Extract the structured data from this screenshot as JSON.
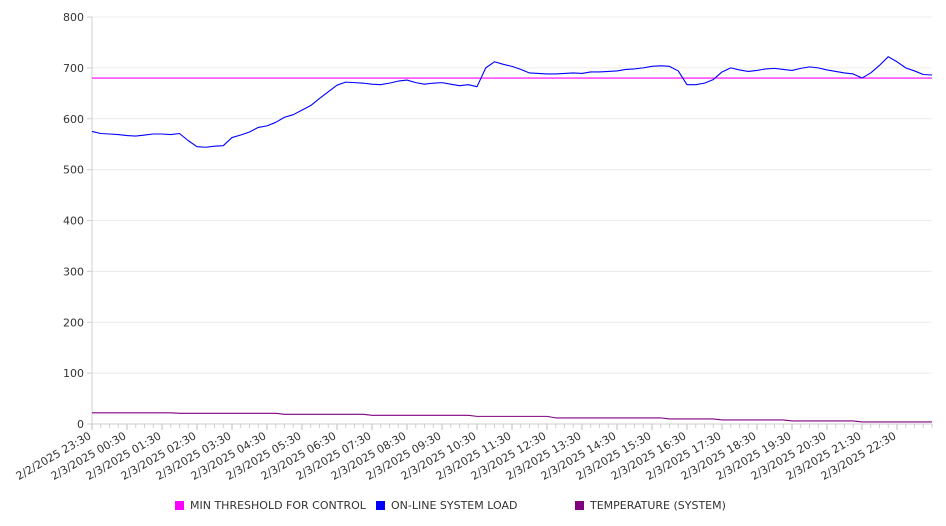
{
  "chart_data": {
    "type": "line",
    "title": "",
    "xlabel": "",
    "ylabel": "",
    "ylim": [
      0,
      800
    ],
    "y_ticks": [
      0,
      100,
      200,
      300,
      400,
      500,
      600,
      700,
      800
    ],
    "x_tick_labels": [
      "2/2/2025 23:30",
      "2/3/2025 00:30",
      "2/3/2025 01:30",
      "2/3/2025 02:30",
      "2/3/2025 03:30",
      "2/3/2025 04:30",
      "2/3/2025 05:30",
      "2/3/2025 06:30",
      "2/3/2025 07:30",
      "2/3/2025 08:30",
      "2/3/2025 09:30",
      "2/3/2025 10:30",
      "2/3/2025 11:30",
      "2/3/2025 12:30",
      "2/3/2025 13:30",
      "2/3/2025 14:30",
      "2/3/2025 15:30",
      "2/3/2025 16:30",
      "2/3/2025 17:30",
      "2/3/2025 18:30",
      "2/3/2025 19:30",
      "2/3/2025 20:30",
      "2/3/2025 21:30",
      "2/3/2025 22:30"
    ],
    "grid": true,
    "legend_position": "bottom",
    "series": [
      {
        "name": "MIN THRESHOLD FOR CONTROL",
        "color": "#ff00ff",
        "x": [
          "2/2/2025 23:30",
          "2/3/2025 23:30"
        ],
        "values": [
          680,
          680
        ]
      },
      {
        "name": "ON-LINE SYSTEM LOAD",
        "color": "#0000ff",
        "x": [
          "2/2/2025 23:30",
          "2/2/2025 23:45",
          "2/3/2025 00:00",
          "2/3/2025 00:15",
          "2/3/2025 00:30",
          "2/3/2025 00:45",
          "2/3/2025 01:00",
          "2/3/2025 01:15",
          "2/3/2025 01:30",
          "2/3/2025 01:45",
          "2/3/2025 02:00",
          "2/3/2025 02:15",
          "2/3/2025 02:30",
          "2/3/2025 02:45",
          "2/3/2025 03:00",
          "2/3/2025 03:15",
          "2/3/2025 03:30",
          "2/3/2025 03:45",
          "2/3/2025 04:00",
          "2/3/2025 04:15",
          "2/3/2025 04:30",
          "2/3/2025 04:45",
          "2/3/2025 05:00",
          "2/3/2025 05:15",
          "2/3/2025 05:30",
          "2/3/2025 05:45",
          "2/3/2025 06:00",
          "2/3/2025 06:15",
          "2/3/2025 06:30",
          "2/3/2025 06:45",
          "2/3/2025 07:00",
          "2/3/2025 07:15",
          "2/3/2025 07:30",
          "2/3/2025 07:45",
          "2/3/2025 08:00",
          "2/3/2025 08:15",
          "2/3/2025 08:30",
          "2/3/2025 08:45",
          "2/3/2025 09:00",
          "2/3/2025 09:15",
          "2/3/2025 09:30",
          "2/3/2025 09:45",
          "2/3/2025 10:00",
          "2/3/2025 10:15",
          "2/3/2025 10:30",
          "2/3/2025 10:45",
          "2/3/2025 11:00",
          "2/3/2025 11:15",
          "2/3/2025 11:30",
          "2/3/2025 11:45",
          "2/3/2025 12:00",
          "2/3/2025 12:15",
          "2/3/2025 12:30",
          "2/3/2025 12:45",
          "2/3/2025 13:00",
          "2/3/2025 13:15",
          "2/3/2025 13:30",
          "2/3/2025 13:45",
          "2/3/2025 14:00",
          "2/3/2025 14:15",
          "2/3/2025 14:30",
          "2/3/2025 14:45",
          "2/3/2025 15:00",
          "2/3/2025 15:15",
          "2/3/2025 15:30",
          "2/3/2025 15:45",
          "2/3/2025 16:00",
          "2/3/2025 16:15",
          "2/3/2025 16:30",
          "2/3/2025 16:45",
          "2/3/2025 17:00",
          "2/3/2025 17:15",
          "2/3/2025 17:30",
          "2/3/2025 17:45",
          "2/3/2025 18:00",
          "2/3/2025 18:15",
          "2/3/2025 18:30",
          "2/3/2025 18:45",
          "2/3/2025 19:00",
          "2/3/2025 19:15",
          "2/3/2025 19:30",
          "2/3/2025 19:45",
          "2/3/2025 20:00",
          "2/3/2025 20:15",
          "2/3/2025 20:30",
          "2/3/2025 20:45",
          "2/3/2025 21:00",
          "2/3/2025 21:15",
          "2/3/2025 21:30",
          "2/3/2025 21:45",
          "2/3/2025 22:00",
          "2/3/2025 22:15",
          "2/3/2025 22:30",
          "2/3/2025 22:45",
          "2/3/2025 23:00",
          "2/3/2025 23:15",
          "2/3/2025 23:30"
        ],
        "values": [
          575,
          571,
          570,
          569,
          567,
          566,
          568,
          570,
          570,
          569,
          571,
          557,
          545,
          544,
          546,
          547,
          563,
          568,
          574,
          583,
          586,
          593,
          603,
          608,
          617,
          626,
          640,
          653,
          666,
          672,
          671,
          670,
          668,
          667,
          670,
          674,
          676,
          671,
          668,
          670,
          671,
          668,
          665,
          667,
          663,
          700,
          712,
          707,
          703,
          697,
          690,
          689,
          688,
          688,
          689,
          690,
          689,
          692,
          692,
          693,
          694,
          697,
          698,
          700,
          703,
          704,
          703,
          694,
          667,
          667,
          670,
          677,
          692,
          700,
          696,
          693,
          695,
          698,
          699,
          697,
          695,
          699,
          702,
          700,
          696,
          693,
          690,
          688,
          680,
          690,
          705,
          722,
          712,
          700,
          694,
          687,
          686
        ]
      },
      {
        "name": "TEMPERATURE (SYSTEM)",
        "color": "#800080",
        "x": [
          "2/2/2025 23:30",
          "2/3/2025 01:45",
          "2/3/2025 02:00",
          "2/3/2025 04:45",
          "2/3/2025 05:00",
          "2/3/2025 07:15",
          "2/3/2025 07:30",
          "2/3/2025 10:15",
          "2/3/2025 10:30",
          "2/3/2025 12:30",
          "2/3/2025 12:45",
          "2/3/2025 15:45",
          "2/3/2025 16:00",
          "2/3/2025 17:15",
          "2/3/2025 17:30",
          "2/3/2025 19:15",
          "2/3/2025 19:30",
          "2/3/2025 21:15",
          "2/3/2025 21:30",
          "2/3/2025 23:30"
        ],
        "values": [
          22,
          22,
          21,
          21,
          19,
          19,
          17,
          17,
          15,
          15,
          12,
          12,
          10,
          10,
          8,
          8,
          6,
          6,
          4,
          4
        ]
      }
    ]
  }
}
